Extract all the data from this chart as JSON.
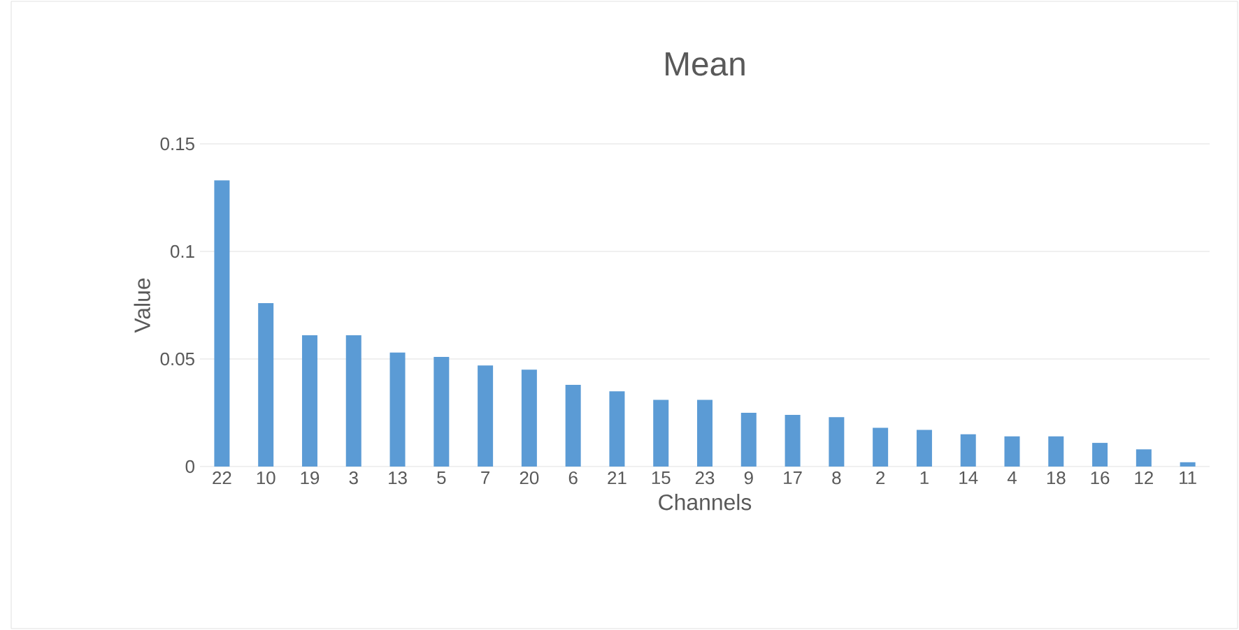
{
  "chart_data": {
    "type": "bar",
    "title": "Mean",
    "xlabel": "Channels",
    "ylabel": "Value",
    "categories": [
      "22",
      "10",
      "19",
      "3",
      "13",
      "5",
      "7",
      "20",
      "6",
      "21",
      "15",
      "23",
      "9",
      "17",
      "8",
      "2",
      "1",
      "14",
      "4",
      "18",
      "16",
      "12",
      "11"
    ],
    "values": [
      0.133,
      0.076,
      0.061,
      0.061,
      0.053,
      0.051,
      0.047,
      0.045,
      0.038,
      0.035,
      0.031,
      0.031,
      0.025,
      0.024,
      0.023,
      0.018,
      0.017,
      0.015,
      0.014,
      0.014,
      0.011,
      0.008,
      0.002
    ],
    "color": "#5b9bd5",
    "ylim": [
      0,
      0.15
    ],
    "yticks": [
      {
        "value": 0,
        "label": "0"
      },
      {
        "value": 0.05,
        "label": "0.05"
      },
      {
        "value": 0.1,
        "label": "0.1"
      },
      {
        "value": 0.15,
        "label": "0.15"
      }
    ],
    "grid": "y"
  }
}
